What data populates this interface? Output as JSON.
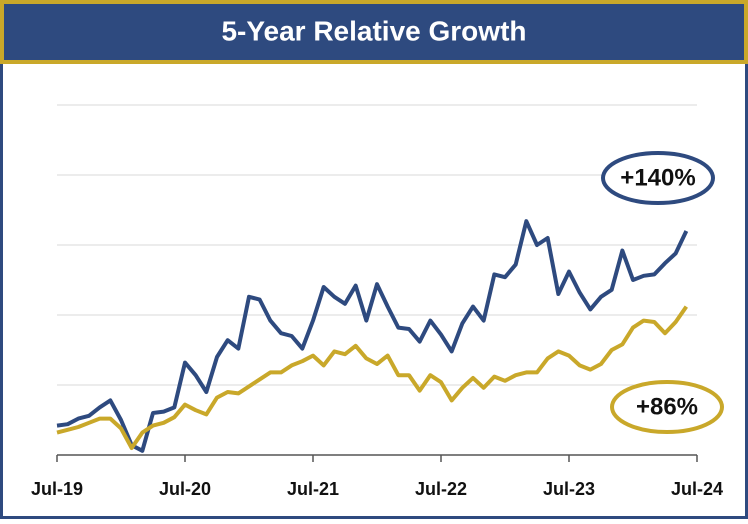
{
  "chart_data": {
    "type": "line",
    "title": "5-Year Relative Growth",
    "x": [
      0,
      1,
      2,
      3,
      4,
      5,
      6,
      7,
      8,
      9,
      10,
      11,
      12,
      13,
      14,
      15,
      16,
      17,
      18,
      19,
      20,
      21,
      22,
      23,
      24,
      25,
      26,
      27,
      28,
      29,
      30,
      31,
      32,
      33,
      34,
      35,
      36,
      37,
      38,
      39,
      40,
      41,
      42,
      43,
      44,
      45,
      46,
      47,
      48,
      49,
      50,
      51,
      52,
      53,
      54,
      55,
      56,
      57,
      58,
      59
    ],
    "xlim": [
      0,
      60
    ],
    "xticks": [
      {
        "value": 0,
        "label": "Jul-19"
      },
      {
        "value": 12,
        "label": "Jul-20"
      },
      {
        "value": 24,
        "label": "Jul-21"
      },
      {
        "value": 36,
        "label": "Jul-22"
      },
      {
        "value": 48,
        "label": "Jul-23"
      },
      {
        "value": 60,
        "label": "Jul-24"
      }
    ],
    "ylim": [
      -20,
      230
    ],
    "yticks": [
      -20,
      30,
      80,
      130,
      180,
      230
    ],
    "grid": true,
    "series": [
      {
        "color": "#2e4a7f",
        "values": [
          1,
          2,
          6,
          8,
          14,
          19,
          5,
          -13,
          -17,
          10,
          11,
          14,
          46,
          37,
          25,
          50,
          62,
          56,
          93,
          91,
          76,
          67,
          65,
          56,
          76,
          100,
          93,
          88,
          101,
          76,
          102,
          86,
          71,
          70,
          61,
          76,
          66,
          54,
          74,
          86,
          76,
          109,
          107,
          116,
          147,
          130,
          135,
          95,
          111,
          96,
          84,
          93,
          98,
          126,
          105,
          108,
          109,
          117,
          124,
          140
        ]
      },
      {
        "color": "#c9a82a",
        "values": [
          -4,
          -2,
          0,
          3,
          6,
          6,
          -1,
          -15,
          -4,
          1,
          3,
          7,
          16,
          12,
          9,
          21,
          25,
          24,
          29,
          34,
          39,
          39,
          44,
          47,
          51,
          44,
          54,
          52,
          58,
          49,
          45,
          51,
          37,
          37,
          26,
          37,
          32,
          19,
          28,
          35,
          28,
          36,
          33,
          37,
          39,
          39,
          49,
          54,
          51,
          44,
          41,
          45,
          55,
          59,
          71,
          76,
          75,
          67,
          75,
          86
        ]
      }
    ],
    "annotations": [
      "+140%",
      "+86%"
    ]
  }
}
